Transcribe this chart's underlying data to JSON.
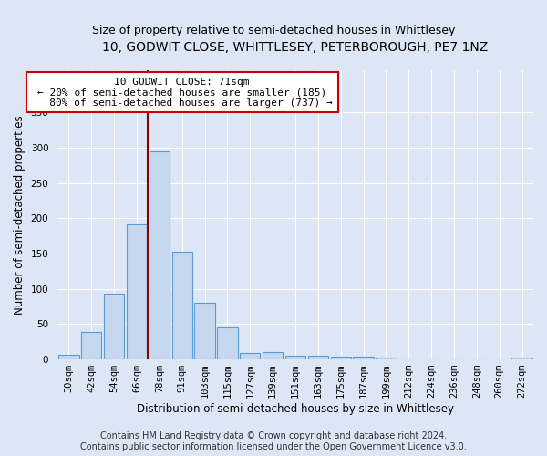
{
  "title": "10, GODWIT CLOSE, WHITTLESEY, PETERBOROUGH, PE7 1NZ",
  "subtitle": "Size of property relative to semi-detached houses in Whittlesey",
  "xlabel": "Distribution of semi-detached houses by size in Whittlesey",
  "ylabel": "Number of semi-detached properties",
  "categories": [
    "30sqm",
    "42sqm",
    "54sqm",
    "66sqm",
    "78sqm",
    "91sqm",
    "103sqm",
    "115sqm",
    "127sqm",
    "139sqm",
    "151sqm",
    "163sqm",
    "175sqm",
    "187sqm",
    "199sqm",
    "212sqm",
    "224sqm",
    "236sqm",
    "248sqm",
    "260sqm",
    "272sqm"
  ],
  "values": [
    7,
    39,
    93,
    192,
    295,
    152,
    80,
    45,
    9,
    11,
    5,
    5,
    4,
    4,
    3,
    0,
    0,
    0,
    0,
    0,
    3
  ],
  "bar_color": "#c5d8ef",
  "bar_edge_color": "#5b9bd5",
  "property_label": "10 GODWIT CLOSE: 71sqm",
  "pct_smaller": 20,
  "n_smaller": 185,
  "pct_larger": 80,
  "n_larger": 737,
  "vline_pos": 3.5,
  "annotation_box_color": "#ffffff",
  "annotation_box_edgecolor": "#cc0000",
  "footer_line1": "Contains HM Land Registry data © Crown copyright and database right 2024.",
  "footer_line2": "Contains public sector information licensed under the Open Government Licence v3.0.",
  "background_color": "#dce6f5",
  "plot_bg_color": "#dce6f5",
  "ylim": [
    0,
    410
  ],
  "title_fontsize": 10,
  "subtitle_fontsize": 9,
  "axis_label_fontsize": 8.5,
  "tick_fontsize": 7.5,
  "annotation_fontsize": 8,
  "footer_fontsize": 7
}
